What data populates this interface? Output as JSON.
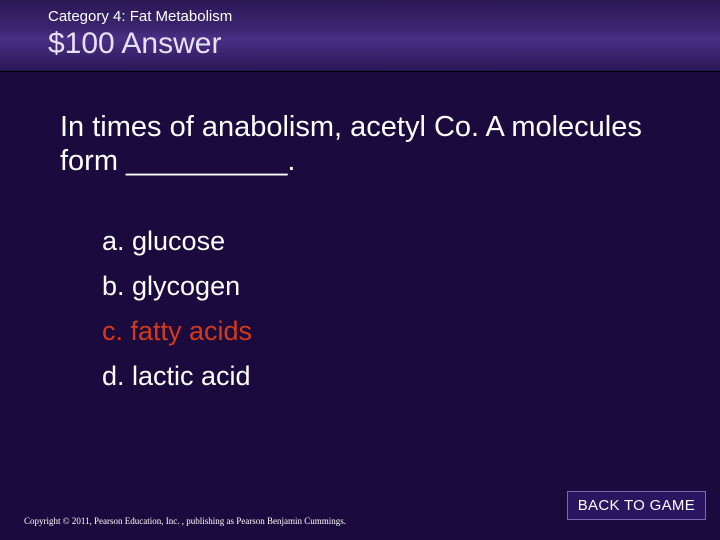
{
  "header": {
    "category": "Category 4: Fat Metabolism",
    "price_answer": "$100 Answer"
  },
  "question": "In times of anabolism, acetyl Co. A molecules form __________.",
  "options": [
    {
      "text": "a. glucose",
      "correct": false
    },
    {
      "text": "b. glycogen",
      "correct": false
    },
    {
      "text": "c. fatty acids",
      "correct": true
    },
    {
      "text": "d. lactic acid",
      "correct": false
    }
  ],
  "back_button": "BACK TO GAME",
  "copyright": "Copyright © 2011, Pearson Education, Inc. , publishing as Pearson Benjamin Cummings.",
  "colors": {
    "background": "#1a0a3d",
    "header_gradient_top": "#2a1855",
    "header_gradient_mid": "#4a2f85",
    "text": "#ffffff",
    "correct": "#d43a1a",
    "button_bg": "#2a1560",
    "button_border": "#7a68b0"
  },
  "typography": {
    "category_fontsize": 15,
    "price_fontsize": 30,
    "question_fontsize": 29,
    "option_fontsize": 27,
    "copyright_fontsize": 9,
    "button_fontsize": 15
  }
}
